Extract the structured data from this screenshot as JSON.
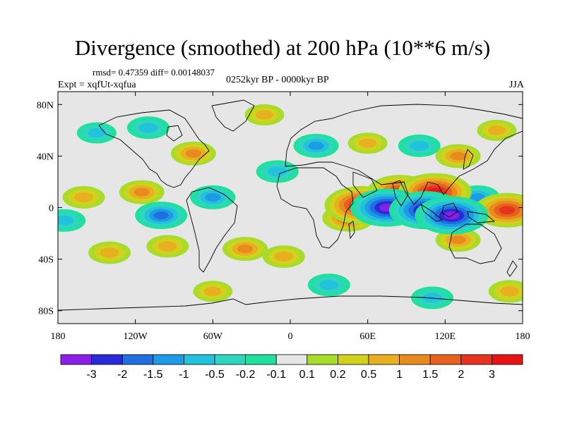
{
  "header": {
    "title": "Divergence (smoothed) at 200 hPa (10**6 m/s)",
    "stats": "rmsd= 0.47359 diff= 0.00148037",
    "experiment": "Expt = xqfUt-xqfua",
    "period": "0252kyr BP - 0000kyr BP",
    "season": "JJA"
  },
  "axes": {
    "lat_labels": [
      "80N",
      "40N",
      "0",
      "40S",
      "80S"
    ],
    "lon_labels": [
      "180",
      "120W",
      "60W",
      "0",
      "60E",
      "120E",
      "180"
    ]
  },
  "colorbar": {
    "labels": [
      "-3",
      "-2",
      "-1.5",
      "-1",
      "-0.5",
      "-0.2",
      "-0.1",
      "0.1",
      "0.2",
      "0.5",
      "1",
      "1.5",
      "2",
      "3"
    ],
    "colors": [
      "#8a1fe6",
      "#2a2ad8",
      "#1f6fe0",
      "#1e9be6",
      "#23c2dc",
      "#2ed6c0",
      "#20e0a0",
      "#e6e6e6",
      "#a8dc2a",
      "#d2d21e",
      "#e6b020",
      "#e88a1e",
      "#e8601e",
      "#e6341e",
      "#e61414"
    ]
  },
  "chart_data": {
    "type": "heatmap",
    "title": "Divergence (smoothed) at 200 hPa (10**6 m/s)",
    "lat_range": [
      -90,
      90
    ],
    "lon_range": [
      -180,
      180
    ],
    "levels": [
      -3,
      -2,
      -1.5,
      -1,
      -0.5,
      -0.2,
      -0.1,
      0.1,
      0.2,
      0.5,
      1,
      1.5,
      2,
      3
    ],
    "features": [
      {
        "lon": 55,
        "lat": 2,
        "value": 3.0
      },
      {
        "lon": 45,
        "lat": -8,
        "value": 1.5
      },
      {
        "lon": 85,
        "lat": 12,
        "value": 2.5
      },
      {
        "lon": 112,
        "lat": 12,
        "value": 3.0
      },
      {
        "lon": 168,
        "lat": -2,
        "value": 2.5
      },
      {
        "lon": 130,
        "lat": -25,
        "value": 1.0
      },
      {
        "lon": 75,
        "lat": 0,
        "value": -3.0
      },
      {
        "lon": 105,
        "lat": -2,
        "value": -3.0
      },
      {
        "lon": 125,
        "lat": -6,
        "value": -3.0
      },
      {
        "lon": 145,
        "lat": 8,
        "value": -1.0
      },
      {
        "lon": -115,
        "lat": 12,
        "value": 1.0
      },
      {
        "lon": -160,
        "lat": 8,
        "value": 0.8
      },
      {
        "lon": -95,
        "lat": -30,
        "value": 0.8
      },
      {
        "lon": -140,
        "lat": -35,
        "value": 0.8
      },
      {
        "lon": -175,
        "lat": -10,
        "value": -0.8
      },
      {
        "lon": -100,
        "lat": -6,
        "value": -1.5
      },
      {
        "lon": -60,
        "lat": 8,
        "value": -1.0
      },
      {
        "lon": -35,
        "lat": -32,
        "value": 1.0
      },
      {
        "lon": -5,
        "lat": -38,
        "value": 0.8
      },
      {
        "lon": -10,
        "lat": 28,
        "value": -0.8
      },
      {
        "lon": 20,
        "lat": 48,
        "value": -1.0
      },
      {
        "lon": 60,
        "lat": 50,
        "value": 0.6
      },
      {
        "lon": 100,
        "lat": 48,
        "value": -0.8
      },
      {
        "lon": 130,
        "lat": 40,
        "value": 1.0
      },
      {
        "lon": -75,
        "lat": 42,
        "value": 1.0
      },
      {
        "lon": -110,
        "lat": 62,
        "value": -0.8
      },
      {
        "lon": -150,
        "lat": 58,
        "value": -0.6
      },
      {
        "lon": 30,
        "lat": -60,
        "value": -0.8
      },
      {
        "lon": -60,
        "lat": -65,
        "value": 0.6
      },
      {
        "lon": 110,
        "lat": -70,
        "value": -0.8
      },
      {
        "lon": 170,
        "lat": -65,
        "value": 0.8
      },
      {
        "lon": -20,
        "lat": 72,
        "value": 0.6
      },
      {
        "lon": 160,
        "lat": 60,
        "value": 0.6
      }
    ]
  }
}
